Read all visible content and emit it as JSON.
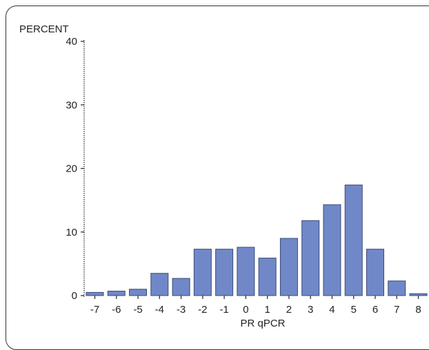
{
  "chart_data": {
    "type": "bar",
    "title": "",
    "ylabel": "PERCENT",
    "xlabel": "PR qPCR",
    "categories": [
      "-7",
      "-6",
      "-5",
      "-4",
      "-3",
      "-2",
      "-1",
      "0",
      "1",
      "2",
      "3",
      "4",
      "5",
      "6",
      "7",
      "8"
    ],
    "values": [
      0.5,
      0.7,
      1.0,
      3.5,
      2.7,
      7.3,
      7.3,
      7.6,
      5.9,
      9.0,
      11.8,
      14.3,
      17.4,
      7.3,
      2.3,
      0.3
    ],
    "yticks": [
      0,
      10,
      20,
      30,
      40
    ],
    "ylim": [
      0,
      40
    ],
    "grid": false,
    "bar_color": "#7088c8",
    "bar_edge_color": "#3a4a78"
  }
}
